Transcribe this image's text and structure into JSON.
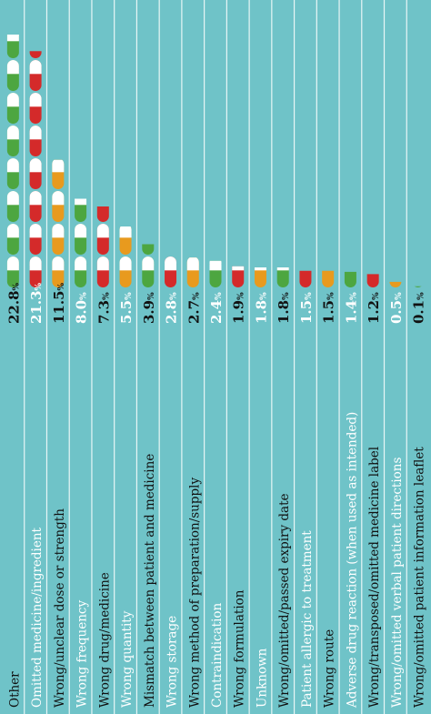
{
  "chart_data": {
    "type": "bar",
    "orientation": "vertical-text, bars grow upward",
    "unit": "%",
    "categories": [
      "Other",
      "Omitted medicine/ingredient",
      "Wrong/unclear dose or strength",
      "Wrong frequency",
      "Wrong drug/medicine",
      "Wrong quantity",
      "Mismatch between patient and medicine",
      "Wrong storage",
      "Wrong method of preparation/supply",
      "Contraindication",
      "Wrong formulation",
      "Unknown",
      "Wrong/omitted/passed expiry date",
      "Patient allergic to treatment",
      "Wrong route",
      "Adverse drug reaction (when used as intended)",
      "Wrong/transposed/omitted medicine label",
      "Wrong/omitted verbal patient directions",
      "Wrong/omitted patient information leaflet"
    ],
    "values": [
      22.8,
      21.3,
      11.5,
      8.0,
      7.3,
      5.5,
      3.9,
      2.8,
      2.7,
      2.4,
      1.9,
      1.8,
      1.8,
      1.5,
      1.5,
      1.4,
      1.2,
      0.5,
      0.1
    ],
    "value_labels": [
      "22.8",
      "21.3",
      "11.5",
      "8.0",
      "7.3",
      "5.5",
      "3.9",
      "2.8",
      "2.7",
      "2.4",
      "1.9",
      "1.8",
      "1.8",
      "1.5",
      "1.5",
      "1.4",
      "1.2",
      "0.5",
      "0.1"
    ],
    "pill_colors": [
      "#4da640",
      "#d42a2a",
      "#e89a1e",
      "#4da640",
      "#d42a2a",
      "#e89a1e",
      "#4da640",
      "#d42a2a",
      "#e89a1e",
      "#4da640",
      "#d42a2a",
      "#e89a1e",
      "#4da640",
      "#d42a2a",
      "#e89a1e",
      "#4da640",
      "#d42a2a",
      "#e89a1e",
      "#4da640"
    ],
    "label_colors": [
      "#111111",
      "#ffffff",
      "#111111",
      "#ffffff",
      "#111111",
      "#ffffff",
      "#111111",
      "#ffffff",
      "#111111",
      "#ffffff",
      "#111111",
      "#ffffff",
      "#111111",
      "#ffffff",
      "#111111",
      "#ffffff",
      "#111111",
      "#ffffff",
      "#111111"
    ],
    "ylim": [
      0,
      22.8
    ],
    "grid": false,
    "colors": {
      "background": "#6fc3c8",
      "row_dividers": "#e8f6f6",
      "pill_white": "#ffffff"
    }
  }
}
